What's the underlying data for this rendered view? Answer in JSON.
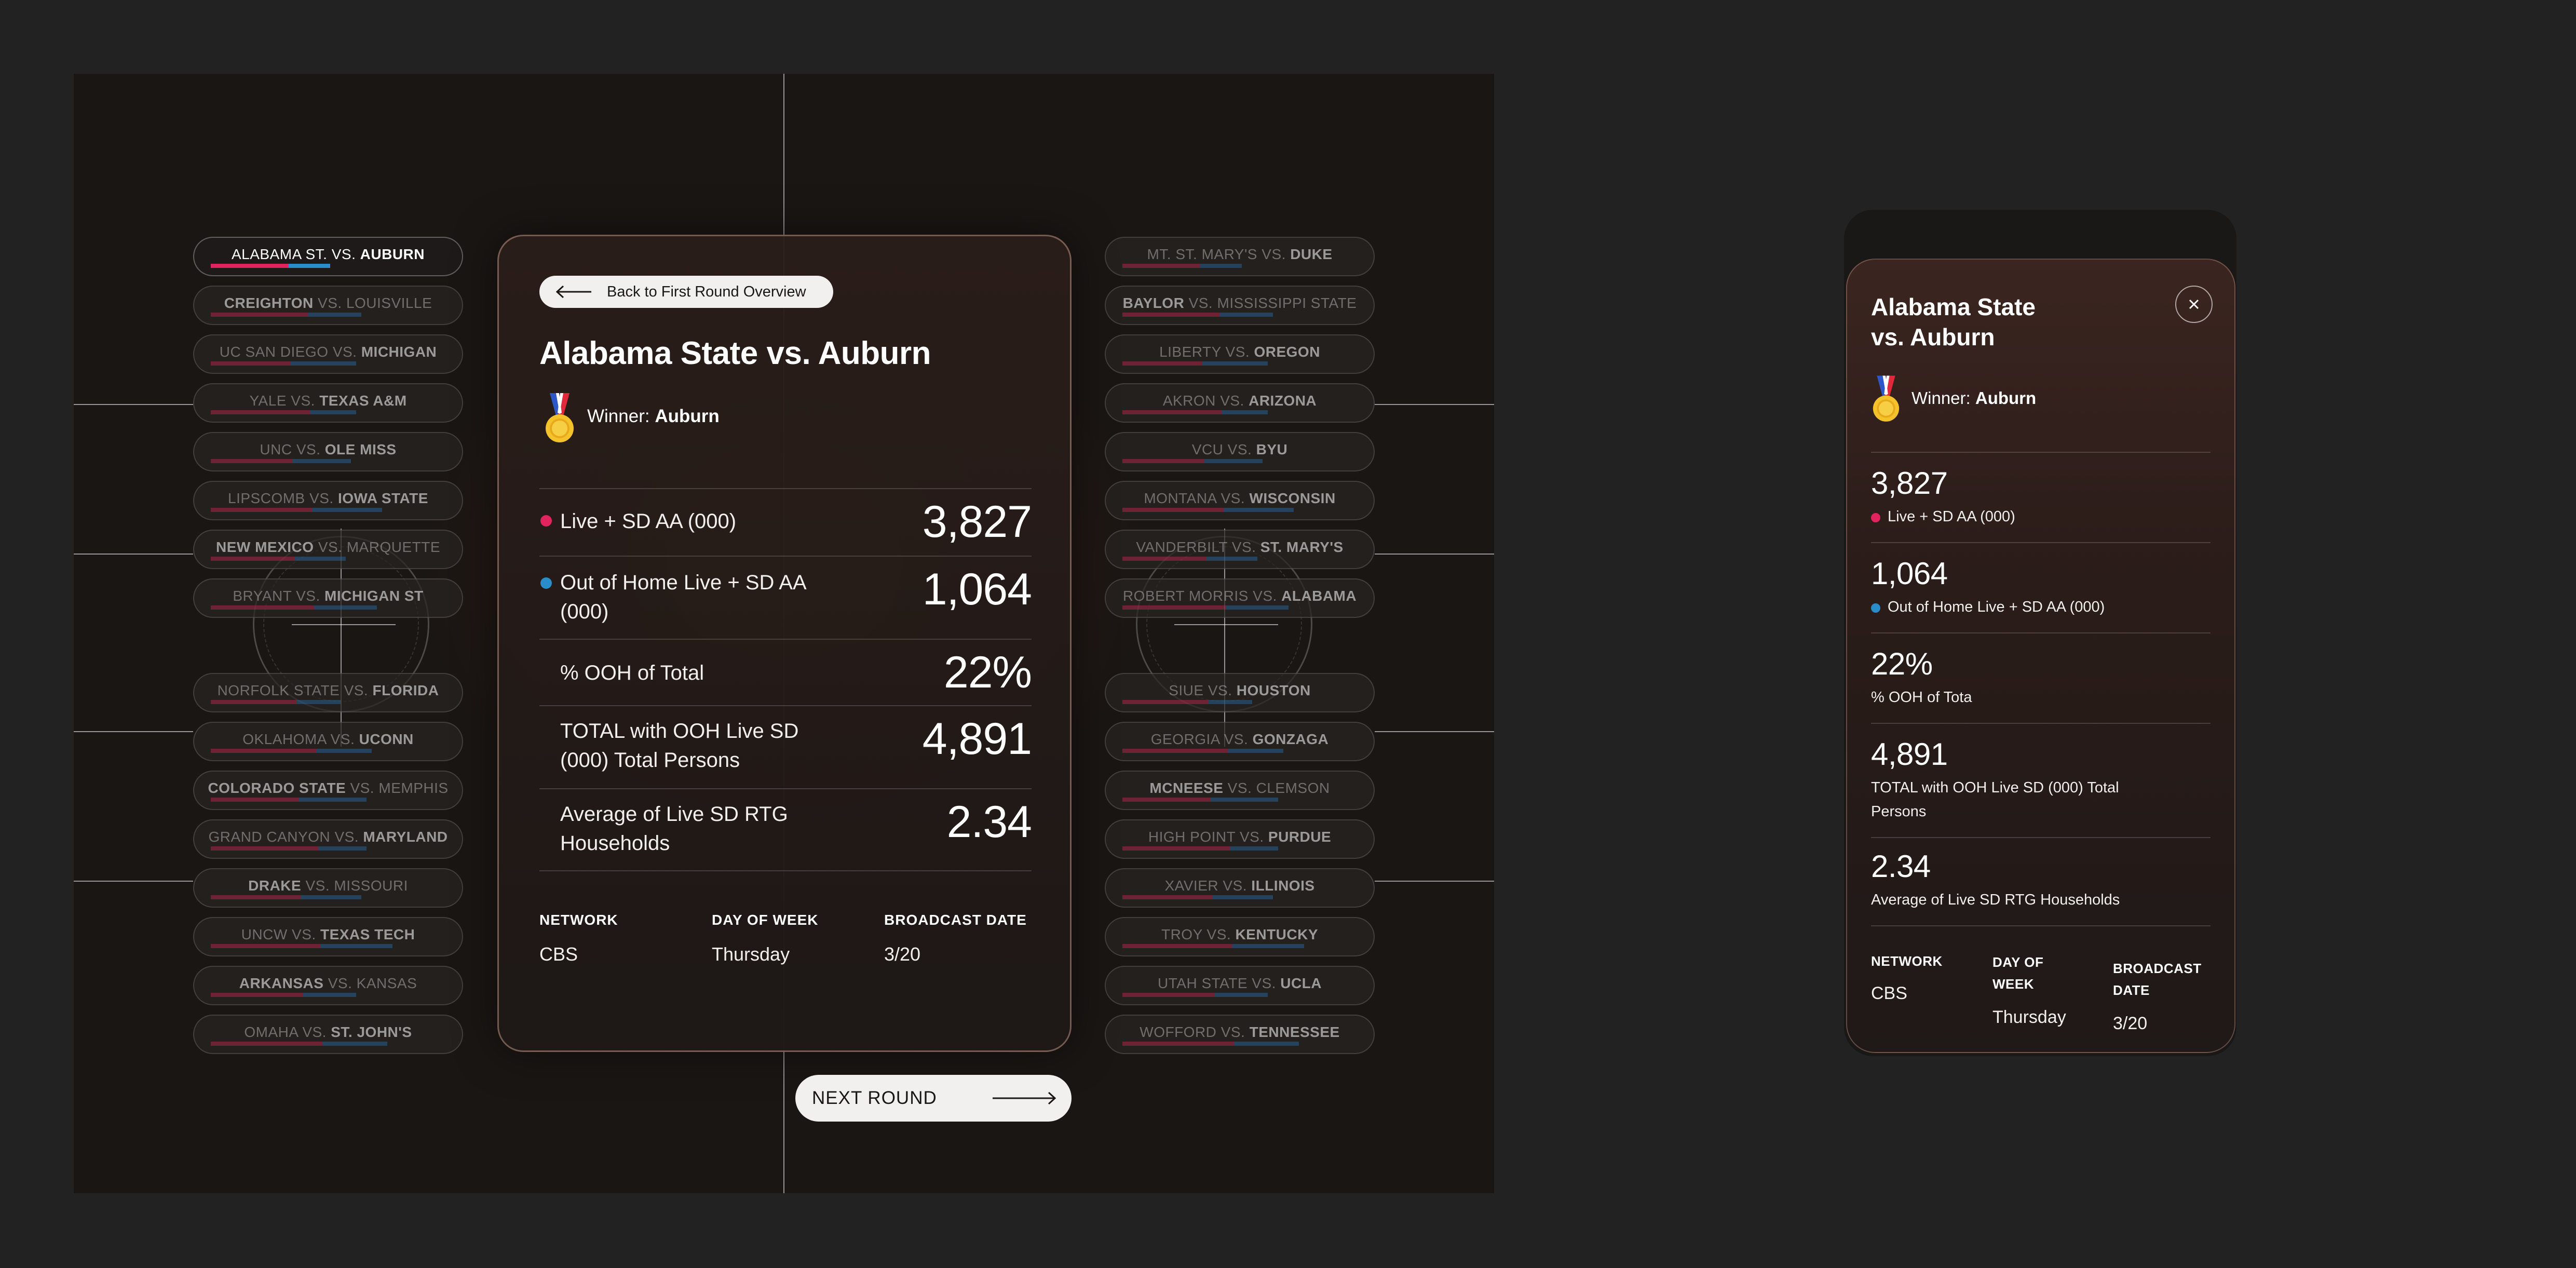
{
  "colors": {
    "live": "#e0245e",
    "ooh": "#2a8cc8"
  },
  "bracket": {
    "left": [
      {
        "a": "ALABAMA ST.",
        "vs": "VS.",
        "b": "AUBURN",
        "winner": "b",
        "active": true
      },
      {
        "a": "CREIGHTON",
        "vs": "VS.",
        "b": "LOUISVILLE",
        "winner": "a"
      },
      {
        "a": "UC SAN DIEGO",
        "vs": "VS.",
        "b": "MICHIGAN",
        "winner": "b"
      },
      {
        "a": "YALE",
        "vs": "VS.",
        "b": "TEXAS A&M",
        "winner": "b"
      },
      {
        "a": "UNC",
        "vs": "VS.",
        "b": "OLE MISS",
        "winner": "b"
      },
      {
        "a": "LIPSCOMB",
        "vs": "VS.",
        "b": "IOWA STATE",
        "winner": "b"
      },
      {
        "a": "NEW MEXICO",
        "vs": "VS.",
        "b": "MARQUETTE",
        "winner": "a"
      },
      {
        "a": "BRYANT",
        "vs": "VS.",
        "b": "MICHIGAN ST",
        "winner": "b"
      },
      {
        "a": "NORFOLK STATE",
        "vs": "VS.",
        "b": "FLORIDA",
        "winner": "b"
      },
      {
        "a": "OKLAHOMA",
        "vs": "VS.",
        "b": "UCONN",
        "winner": "b"
      },
      {
        "a": "COLORADO STATE",
        "vs": "VS.",
        "b": "MEMPHIS",
        "winner": "a"
      },
      {
        "a": "GRAND CANYON",
        "vs": "VS.",
        "b": "MARYLAND",
        "winner": "b"
      },
      {
        "a": "DRAKE",
        "vs": "VS.",
        "b": "MISSOURI",
        "winner": "a"
      },
      {
        "a": "UNCW",
        "vs": "VS.",
        "b": "TEXAS TECH",
        "winner": "b"
      },
      {
        "a": "ARKANSAS",
        "vs": "VS.",
        "b": "KANSAS",
        "winner": "a"
      },
      {
        "a": "OMAHA",
        "vs": "VS.",
        "b": "ST. JOHN'S",
        "winner": "b"
      }
    ],
    "right": [
      {
        "a": "MT. ST. MARY'S",
        "vs": "VS.",
        "b": "DUKE",
        "winner": "b"
      },
      {
        "a": "BAYLOR",
        "vs": "VS.",
        "b": "MISSISSIPPI STATE",
        "winner": "a"
      },
      {
        "a": "LIBERTY",
        "vs": "VS.",
        "b": "OREGON",
        "winner": "b"
      },
      {
        "a": "AKRON",
        "vs": "VS.",
        "b": "ARIZONA",
        "winner": "b"
      },
      {
        "a": "VCU",
        "vs": "VS.",
        "b": "BYU",
        "winner": "b"
      },
      {
        "a": "MONTANA",
        "vs": "VS.",
        "b": "WISCONSIN",
        "winner": "b"
      },
      {
        "a": "VANDERBILT",
        "vs": "VS.",
        "b": "ST. MARY'S",
        "winner": "b"
      },
      {
        "a": "ROBERT MORRIS",
        "vs": "VS.",
        "b": "ALABAMA",
        "winner": "b"
      },
      {
        "a": "SIUE",
        "vs": "VS.",
        "b": "HOUSTON",
        "winner": "b"
      },
      {
        "a": "GEORGIA",
        "vs": "VS.",
        "b": "GONZAGA",
        "winner": "b"
      },
      {
        "a": "MCNEESE",
        "vs": "VS.",
        "b": "CLEMSON",
        "winner": "a"
      },
      {
        "a": "HIGH POINT",
        "vs": "VS.",
        "b": "PURDUE",
        "winner": "b"
      },
      {
        "a": "XAVIER",
        "vs": "VS.",
        "b": "ILLINOIS",
        "winner": "b"
      },
      {
        "a": "TROY",
        "vs": "VS.",
        "b": "KENTUCKY",
        "winner": "b"
      },
      {
        "a": "UTAH STATE",
        "vs": "VS.",
        "b": "UCLA",
        "winner": "b"
      },
      {
        "a": "WOFFORD",
        "vs": "VS.",
        "b": "TENNESSEE",
        "winner": "b"
      }
    ]
  },
  "card": {
    "back_label": "Back to First Round Overview",
    "title": "Alabama State vs. Auburn",
    "winner_prefix": "Winner: ",
    "winner_name": "Auburn",
    "stats": [
      {
        "label": "Live + SD AA (000)",
        "value": "3,827",
        "dot": "live"
      },
      {
        "label": "Out of Home Live + SD AA (000)",
        "value": "1,064",
        "dot": "ooh"
      },
      {
        "label": "% OOH of Total",
        "value": "22%"
      },
      {
        "label": "TOTAL with OOH Live SD (000) Total Persons",
        "value": "4,891"
      },
      {
        "label": "Average of Live SD RTG Households",
        "value": "2.34"
      }
    ],
    "meta": {
      "network_label": "NETWORK",
      "network": "CBS",
      "day_label": "DAY OF WEEK",
      "day": "Thursday",
      "date_label": "BROADCAST DATE",
      "date": "3/20"
    }
  },
  "next_label": "NEXT ROUND",
  "mobile": {
    "title_line1": "Alabama State",
    "title_line2": "vs. Auburn",
    "winner_prefix": "Winner: ",
    "winner_name": "Auburn",
    "stats": [
      {
        "value": "3,827",
        "label": "Live + SD AA (000)",
        "dot": "live"
      },
      {
        "value": "1,064",
        "label": "Out of Home Live + SD AA (000)",
        "dot": "ooh"
      },
      {
        "value": "22%",
        "label": "% OOH of Tota"
      },
      {
        "value": "4,891",
        "label": "TOTAL with OOH Live SD (000) Total Persons"
      },
      {
        "value": "2.34",
        "label": "Average of Live SD RTG Households"
      }
    ],
    "meta": {
      "network_label": "NETWORK",
      "network": "CBS",
      "day_label_1": "DAY OF",
      "day_label_2": "WEEK",
      "day": "Thursday",
      "date_label_1": "BROADCAST",
      "date_label_2": "DATE",
      "date": "3/20"
    }
  }
}
